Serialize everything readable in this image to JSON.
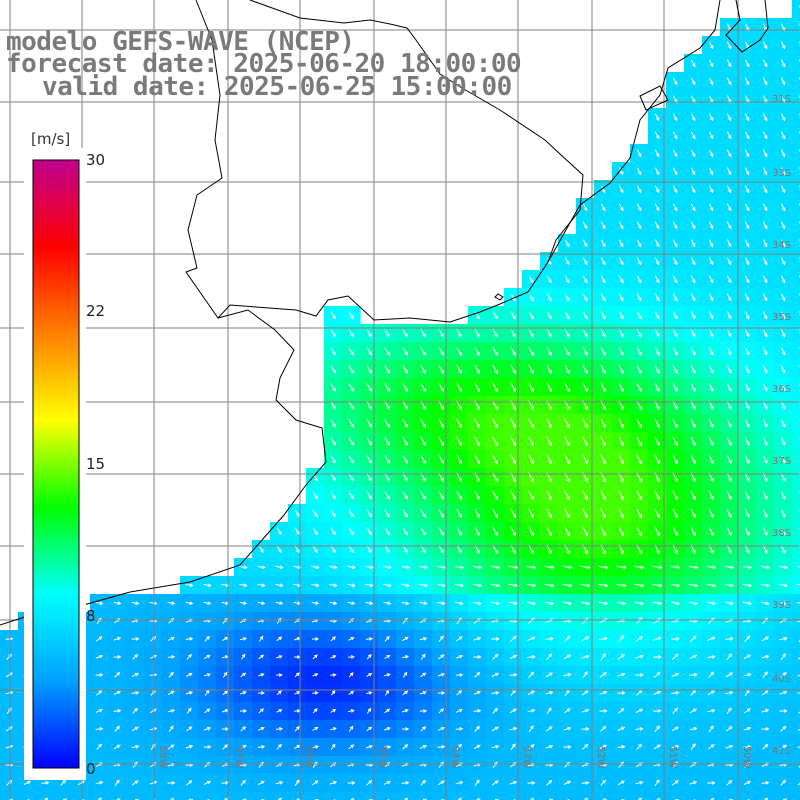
{
  "header": {
    "title_line1": "modelo GEFS-WAVE (NCEP)",
    "title_line2": "forecast date: 2025-06-20 18:00:00",
    "title_line3": "valid date: 2025-06-25 15:00:00"
  },
  "colorbar": {
    "unit": "[m/s]",
    "ticks": [
      "30",
      "22",
      "15",
      "8",
      "0"
    ],
    "min": 0,
    "max": 30,
    "colors": [
      "#0000ff",
      "#00a0ff",
      "#00ffff",
      "#00ff00",
      "#ffff00",
      "#ff8000",
      "#ff0000",
      "#c0008f"
    ]
  },
  "map": {
    "lat_labels": [
      "31S",
      "33S",
      "34S",
      "35S",
      "36S",
      "37S",
      "38S",
      "39S",
      "40S",
      "41S"
    ],
    "lon_labels": [
      "58W",
      "57W",
      "56W",
      "55W",
      "54W",
      "53W",
      "52W",
      "51W",
      "50W"
    ],
    "land_color": "#ffffff",
    "coast_color": "#000000",
    "grid_color": "#7f7f7f",
    "arrow_color": "#ffffff"
  }
}
